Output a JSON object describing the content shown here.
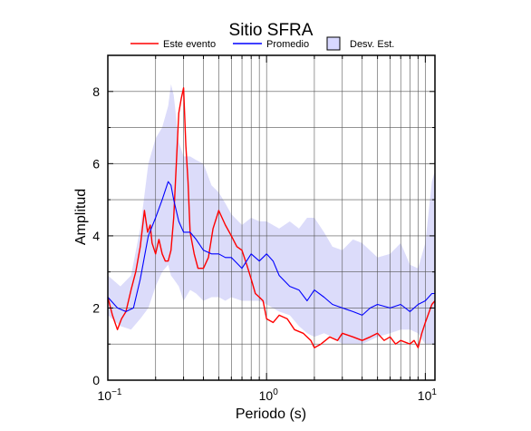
{
  "chart_data": {
    "type": "line",
    "title": "Sitio SFRA",
    "xlabel": "Periodo (s)",
    "ylabel": "Amplitud",
    "x_scale": "log",
    "xlim": [
      0.1,
      11.5
    ],
    "ylim": [
      0,
      9
    ],
    "grid": true,
    "legend_placement": "top-center",
    "y_ticks": [
      0,
      2,
      4,
      6,
      8
    ],
    "x_ticks": [
      {
        "base": "10",
        "exp": "−1"
      },
      {
        "base": "10",
        "exp": "0"
      },
      {
        "base": "10",
        "exp": "1"
      }
    ],
    "legend": [
      {
        "label": "Este evento",
        "kind": "line",
        "color": "#ff0000"
      },
      {
        "label": "Promedio",
        "kind": "line",
        "color": "#0000ff"
      },
      {
        "label": "Desv. Est.",
        "kind": "box",
        "color": "#d8d8ff"
      }
    ],
    "colors": {
      "event": "#ff0000",
      "mean": "#0000ff",
      "band": "#dcdcfa"
    },
    "series": [
      {
        "name": "Este evento",
        "x": [
          0.1,
          0.107,
          0.115,
          0.122,
          0.13,
          0.14,
          0.15,
          0.16,
          0.165,
          0.17,
          0.178,
          0.185,
          0.19,
          0.2,
          0.21,
          0.22,
          0.23,
          0.24,
          0.25,
          0.26,
          0.27,
          0.28,
          0.29,
          0.3,
          0.31,
          0.32,
          0.33,
          0.35,
          0.37,
          0.4,
          0.43,
          0.46,
          0.5,
          0.55,
          0.6,
          0.65,
          0.7,
          0.75,
          0.8,
          0.85,
          0.9,
          0.95,
          1.0,
          1.1,
          1.2,
          1.35,
          1.5,
          1.7,
          1.9,
          2.0,
          2.2,
          2.5,
          2.8,
          3.0,
          3.5,
          4.0,
          4.5,
          5.0,
          5.5,
          6.0,
          6.5,
          7.0,
          8.0,
          8.5,
          9.0,
          9.5,
          10.0,
          11.0,
          11.5
        ],
        "y": [
          2.3,
          1.8,
          1.4,
          1.7,
          1.9,
          2.5,
          3.0,
          3.7,
          4.2,
          4.7,
          4.1,
          4.3,
          3.8,
          3.5,
          3.9,
          3.5,
          3.3,
          3.3,
          3.6,
          4.5,
          6.0,
          7.4,
          7.8,
          8.1,
          6.5,
          5.5,
          4.1,
          3.5,
          3.1,
          3.1,
          3.4,
          4.2,
          4.7,
          4.3,
          4.0,
          3.7,
          3.6,
          3.2,
          2.8,
          2.4,
          2.3,
          2.2,
          1.7,
          1.6,
          1.8,
          1.7,
          1.4,
          1.3,
          1.1,
          0.9,
          1.0,
          1.2,
          1.1,
          1.3,
          1.2,
          1.1,
          1.2,
          1.3,
          1.1,
          1.2,
          1.0,
          1.1,
          1.0,
          1.1,
          0.9,
          1.3,
          1.6,
          2.1,
          2.2
        ]
      },
      {
        "name": "Promedio",
        "x": [
          0.1,
          0.115,
          0.13,
          0.145,
          0.16,
          0.18,
          0.2,
          0.22,
          0.24,
          0.25,
          0.26,
          0.28,
          0.3,
          0.33,
          0.36,
          0.4,
          0.45,
          0.5,
          0.55,
          0.6,
          0.7,
          0.8,
          0.9,
          1.0,
          1.1,
          1.2,
          1.4,
          1.6,
          1.8,
          2.0,
          2.3,
          2.6,
          3.0,
          3.5,
          4.0,
          4.5,
          5.0,
          6.0,
          7.0,
          8.0,
          9.0,
          10.0,
          11.0,
          11.5
        ],
        "y": [
          2.3,
          2.0,
          1.9,
          2.0,
          2.8,
          4.0,
          4.5,
          5.0,
          5.5,
          5.4,
          5.0,
          4.4,
          4.1,
          4.1,
          3.9,
          3.6,
          3.5,
          3.5,
          3.4,
          3.4,
          3.1,
          3.5,
          3.3,
          3.5,
          3.3,
          2.9,
          2.6,
          2.5,
          2.2,
          2.5,
          2.3,
          2.1,
          2.0,
          1.9,
          1.8,
          2.0,
          2.1,
          2.0,
          2.1,
          1.9,
          2.1,
          2.2,
          2.4,
          2.4
        ]
      }
    ],
    "band": {
      "x": [
        0.1,
        0.12,
        0.14,
        0.16,
        0.18,
        0.2,
        0.22,
        0.24,
        0.25,
        0.26,
        0.28,
        0.3,
        0.33,
        0.36,
        0.4,
        0.45,
        0.5,
        0.55,
        0.6,
        0.7,
        0.8,
        0.9,
        1.0,
        1.2,
        1.4,
        1.6,
        1.8,
        2.0,
        2.3,
        2.6,
        3.0,
        3.5,
        4.0,
        5.0,
        6.0,
        7.0,
        8.0,
        9.0,
        10.0,
        11.0,
        11.5
      ],
      "upper": [
        2.9,
        2.6,
        2.9,
        4.2,
        6.0,
        6.7,
        7.0,
        7.6,
        8.2,
        7.9,
        6.6,
        6.2,
        6.2,
        6.1,
        6.0,
        5.4,
        5.2,
        4.9,
        4.6,
        4.3,
        4.5,
        4.4,
        4.4,
        4.2,
        4.4,
        4.2,
        4.5,
        4.5,
        4.1,
        3.7,
        3.6,
        3.9,
        3.8,
        3.4,
        3.5,
        3.8,
        3.2,
        3.1,
        3.8,
        5.5,
        5.8
      ],
      "lower": [
        1.8,
        1.5,
        1.4,
        1.7,
        2.0,
        2.6,
        3.0,
        3.2,
        2.9,
        2.8,
        2.6,
        2.2,
        2.5,
        2.4,
        2.2,
        2.3,
        2.3,
        2.2,
        2.3,
        2.2,
        2.2,
        2.2,
        2.1,
        1.9,
        1.8,
        1.5,
        1.3,
        1.2,
        1.3,
        1.2,
        1.0,
        1.0,
        1.0,
        1.2,
        1.3,
        1.4,
        1.4,
        1.3,
        1.0,
        1.0,
        1.0
      ]
    }
  }
}
